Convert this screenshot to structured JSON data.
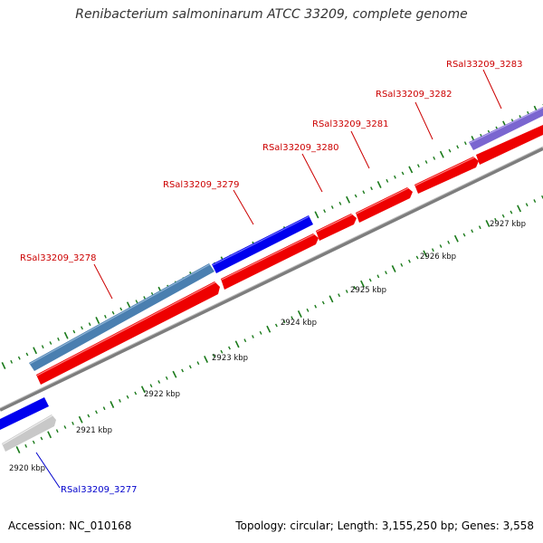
{
  "title": "Renibacterium salmoninarum ATCC 33209, complete genome",
  "footer": {
    "accession": "Accession: NC_010168",
    "topology": "Topology: circular; Length: 3,155,250 bp; Genes: 3,558"
  },
  "colors": {
    "forward_cds": "#0000ee",
    "forward_cds_alt": "#4a7fb0",
    "forward_other": "#7a66d0",
    "reverse_cds": "#ee0000",
    "reverse_other": "#c8c8c8",
    "backbone": "#888888",
    "tick": "#1a7a1a",
    "label_red": "#cc0000",
    "label_blue": "#0000cc"
  },
  "genes": [
    {
      "id": "RSal33209_3277",
      "strand": "reverse",
      "color": "reverse_other"
    },
    {
      "id": "RSal33209_3278",
      "strand": "forward",
      "color": "forward_cds_alt"
    },
    {
      "id": "RSal33209_3279",
      "strand": "forward",
      "color": "forward_cds"
    },
    {
      "id": "RSal33209_3280",
      "strand": "reverse",
      "color": "reverse_cds"
    },
    {
      "id": "RSal33209_3281",
      "strand": "reverse",
      "color": "reverse_cds"
    },
    {
      "id": "RSal33209_3282",
      "strand": "reverse",
      "color": "reverse_cds"
    },
    {
      "id": "RSal33209_3283",
      "strand": "forward",
      "color": "forward_other"
    }
  ],
  "kbp_labels": [
    "2920 kbp",
    "2921 kbp",
    "2922 kbp",
    "2923 kbp",
    "2924 kbp",
    "2925 kbp",
    "2926 kbp",
    "2927 kbp"
  ]
}
